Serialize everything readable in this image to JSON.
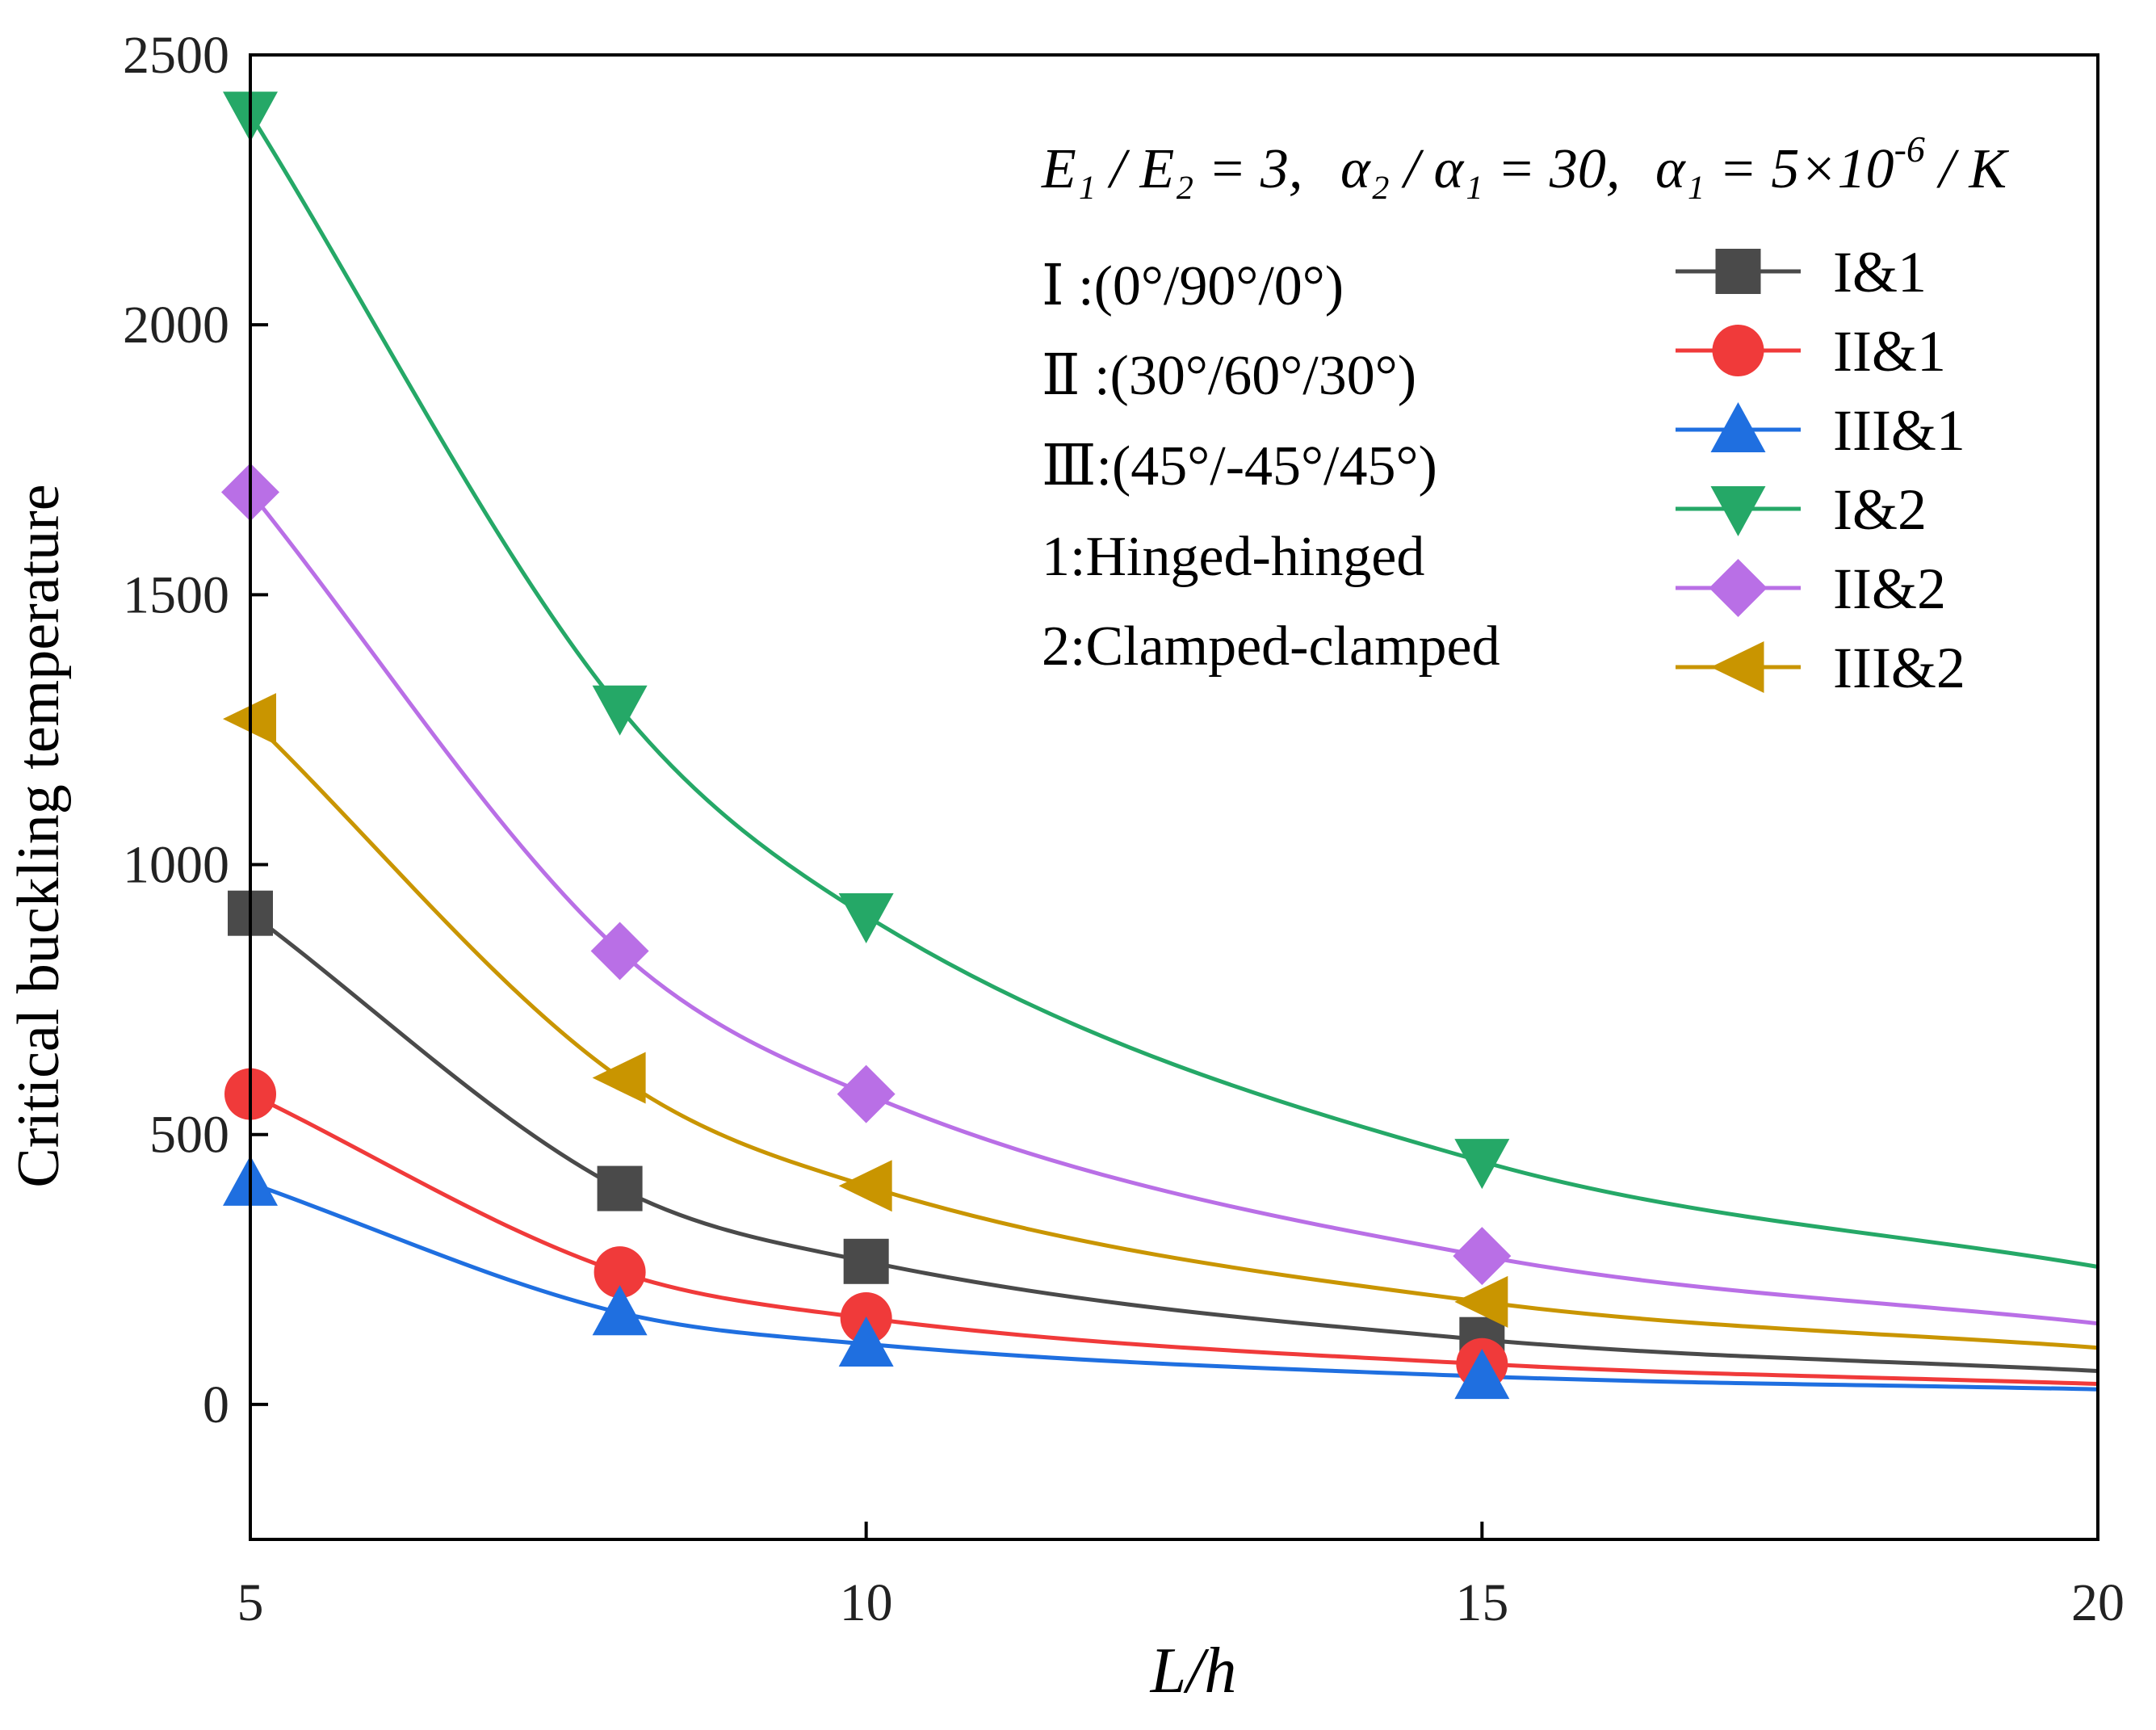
{
  "chart_data": {
    "type": "line",
    "xlabel": "L/h",
    "ylabel": "Critical buckling temperature",
    "xlim": [
      5,
      20
    ],
    "ylim": [
      -250,
      2500
    ],
    "xticks": [
      "5",
      "10",
      "15",
      "20"
    ],
    "yticks": [
      "0",
      "500",
      "1000",
      "1500",
      "2000",
      "2500"
    ],
    "parameters_line": "E1 / E2 = 3, α2 / α1 = 30, α1 = 5×10^-6 / K",
    "parameters": {
      "E1_E2": "E₁ / E₂ = 3,",
      "alpha_ratio": "α₂ / α₁ = 30,",
      "alpha1_base": "α₁ = 5×10",
      "alpha1_exp": "-6",
      "alpha1_unit": " / K"
    },
    "notes": [
      "Ⅰ :(0°/90°/0°)",
      "Ⅱ :(30°/60°/30°)",
      "Ⅲ:(45°/-45°/45°)",
      "1:Hinged-hinged",
      "2:Clamped-clamped"
    ],
    "legend_position": "top-right",
    "x": [
      5,
      8,
      10,
      15,
      20
    ],
    "series": [
      {
        "name": "I&1",
        "color": "#4a4a4a",
        "marker": "square",
        "values": [
          910,
          400,
          265,
          120,
          62
        ]
      },
      {
        "name": "II&1",
        "color": "#f03a3a",
        "marker": "circle",
        "values": [
          575,
          245,
          160,
          75,
          38
        ]
      },
      {
        "name": "III&1",
        "color": "#1f6fe0",
        "marker": "triangle-up",
        "values": [
          410,
          170,
          112,
          52,
          28
        ]
      },
      {
        "name": "I&2",
        "color": "#25a867",
        "marker": "triangle-down",
        "values": [
          2390,
          1290,
          905,
          450,
          255
        ]
      },
      {
        "name": "II&2",
        "color": "#b96fe6",
        "marker": "diamond",
        "values": [
          1690,
          840,
          575,
          275,
          150
        ]
      },
      {
        "name": "III&2",
        "color": "#c99500",
        "marker": "triangle-left",
        "values": [
          1270,
          605,
          405,
          190,
          105
        ]
      }
    ]
  }
}
